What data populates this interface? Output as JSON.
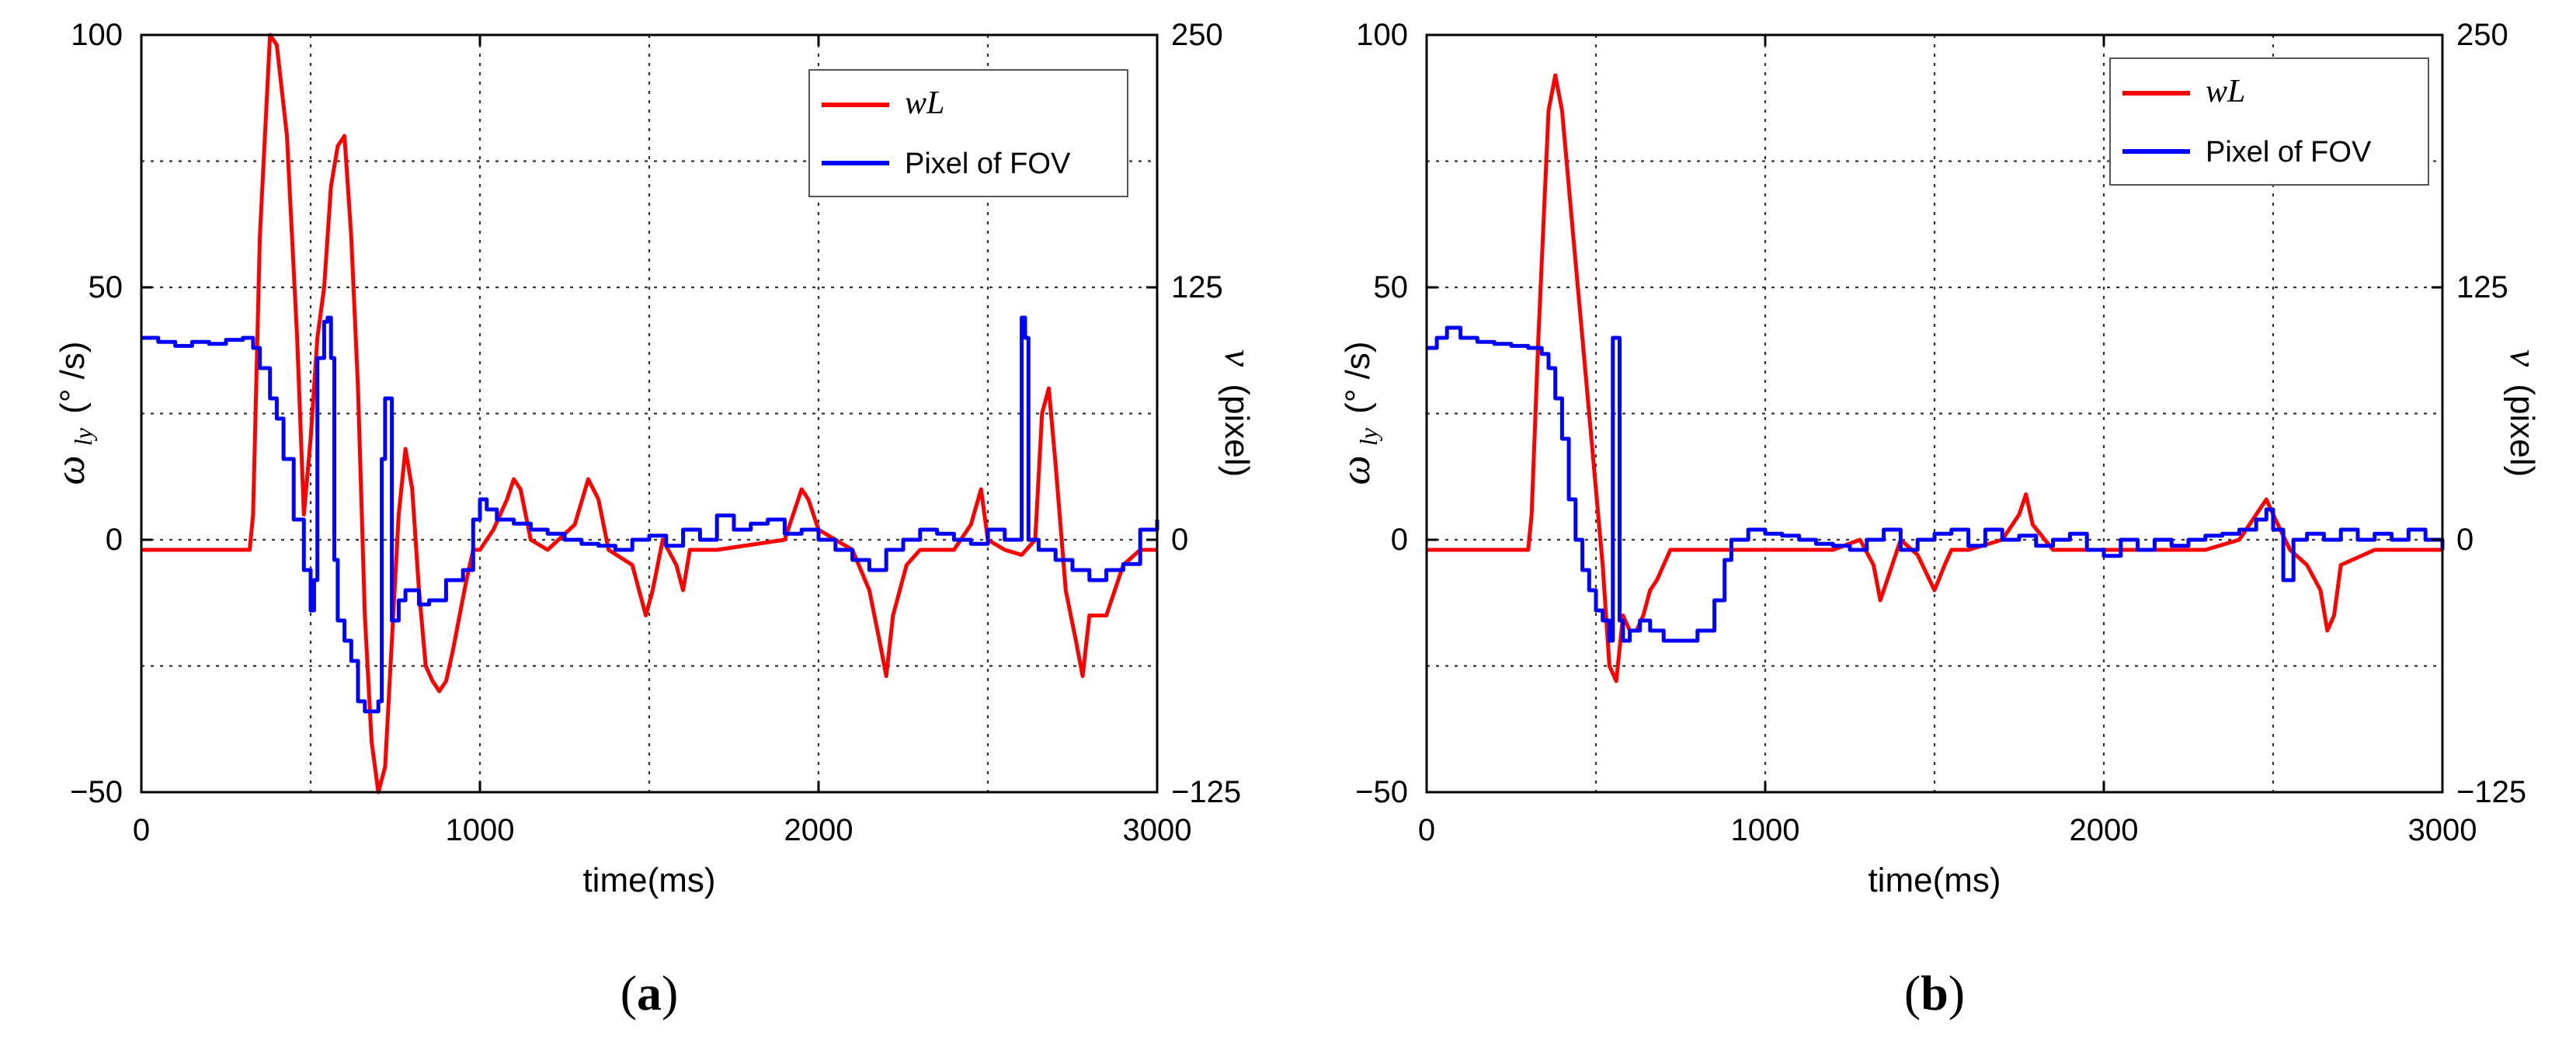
{
  "chart_data": [
    {
      "type": "line",
      "panel_label_parts": [
        "(",
        "a",
        ")"
      ],
      "xlabel": "time(ms)",
      "ylabel_left": {
        "symbol": "ω",
        "subscript": "ly",
        "units": "(° /s)"
      },
      "ylabel_right": {
        "symbol": "v",
        "units": "(pixel)"
      },
      "xlim": [
        0,
        3000
      ],
      "ylim_left": [
        -50,
        100
      ],
      "ylim_right": [
        -125,
        250
      ],
      "x_ticks": [
        "0",
        "1000",
        "2000",
        "3000"
      ],
      "y_left_ticks": [
        "−50",
        "0",
        "50",
        "100"
      ],
      "y_right_ticks": [
        "−125",
        "0",
        "125",
        "250"
      ],
      "grid": true,
      "legend_position": "top-right",
      "series": [
        {
          "name": "wL",
          "axis": "left",
          "color": "#ff0000",
          "x": [
            0,
            320,
            330,
            350,
            380,
            400,
            430,
            460,
            480,
            500,
            520,
            540,
            560,
            580,
            600,
            620,
            640,
            660,
            680,
            700,
            720,
            740,
            760,
            780,
            800,
            820,
            840,
            860,
            880,
            900,
            920,
            940,
            960,
            980,
            1000,
            1040,
            1080,
            1100,
            1120,
            1150,
            1200,
            1280,
            1320,
            1350,
            1380,
            1450,
            1490,
            1510,
            1540,
            1580,
            1600,
            1620,
            1700,
            1900,
            1950,
            1970,
            2000,
            2050,
            2100,
            2150,
            2180,
            2200,
            2220,
            2260,
            2300,
            2400,
            2450,
            2480,
            2500,
            2550,
            2600,
            2640,
            2660,
            2680,
            2700,
            2730,
            2760,
            2780,
            2800,
            2850,
            2900,
            2950,
            3000
          ],
          "y": [
            -2,
            -2,
            5,
            60,
            100,
            98,
            80,
            40,
            5,
            20,
            40,
            50,
            70,
            78,
            80,
            60,
            30,
            -15,
            -40,
            -50,
            -45,
            -20,
            5,
            18,
            10,
            -10,
            -25,
            -28,
            -30,
            -28,
            -22,
            -15,
            -8,
            -2,
            -2,
            2,
            8,
            12,
            10,
            0,
            -2,
            3,
            12,
            8,
            -2,
            -5,
            -15,
            -10,
            0,
            -5,
            -10,
            -2,
            -2,
            0,
            10,
            8,
            2,
            0,
            -2,
            -10,
            -20,
            -27,
            -15,
            -5,
            -2,
            -2,
            3,
            10,
            0,
            -2,
            -3,
            0,
            25,
            30,
            15,
            -10,
            -20,
            -27,
            -15,
            -15,
            -5,
            -2,
            -2
          ]
        },
        {
          "name": "Pixel of FOV",
          "axis": "right",
          "color": "#0000ff",
          "x": [
            0,
            50,
            100,
            150,
            200,
            250,
            300,
            330,
            350,
            380,
            400,
            420,
            450,
            480,
            500,
            510,
            520,
            530,
            540,
            550,
            560,
            570,
            580,
            600,
            620,
            640,
            660,
            680,
            700,
            710,
            720,
            730,
            740,
            750,
            760,
            780,
            800,
            820,
            850,
            880,
            900,
            950,
            980,
            1000,
            1020,
            1050,
            1100,
            1150,
            1200,
            1250,
            1300,
            1350,
            1400,
            1450,
            1500,
            1550,
            1600,
            1650,
            1700,
            1750,
            1800,
            1850,
            1900,
            1950,
            2000,
            2050,
            2100,
            2150,
            2200,
            2250,
            2300,
            2350,
            2400,
            2450,
            2500,
            2550,
            2580,
            2600,
            2610,
            2620,
            2650,
            2700,
            2750,
            2800,
            2850,
            2900,
            2950,
            3000
          ],
          "y": [
            100,
            98,
            96,
            98,
            97,
            99,
            100,
            95,
            85,
            70,
            60,
            40,
            10,
            -15,
            -35,
            -20,
            90,
            90,
            108,
            110,
            90,
            -10,
            -40,
            -50,
            -60,
            -80,
            -85,
            -85,
            -80,
            40,
            70,
            70,
            -40,
            -40,
            -30,
            -25,
            -25,
            -32,
            -30,
            -30,
            -20,
            -15,
            10,
            20,
            15,
            10,
            8,
            5,
            3,
            0,
            -2,
            -3,
            -5,
            0,
            2,
            -3,
            5,
            0,
            12,
            5,
            8,
            10,
            3,
            5,
            0,
            -5,
            -10,
            -15,
            -5,
            0,
            5,
            3,
            0,
            -2,
            5,
            0,
            0,
            110,
            100,
            0,
            -5,
            -10,
            -15,
            -20,
            -15,
            -12,
            5,
            10
          ]
        }
      ]
    },
    {
      "type": "line",
      "panel_label_parts": [
        "(",
        "b",
        ")"
      ],
      "xlabel": "time(ms)",
      "ylabel_left": {
        "symbol": "ω",
        "subscript": "ly",
        "units": "(° /s)"
      },
      "ylabel_right": {
        "symbol": "v",
        "units": "(pixel)"
      },
      "xlim": [
        0,
        3000
      ],
      "ylim_left": [
        -50,
        100
      ],
      "ylim_right": [
        -125,
        250
      ],
      "x_ticks": [
        "0",
        "1000",
        "2000",
        "3000"
      ],
      "y_left_ticks": [
        "−50",
        "0",
        "50",
        "100"
      ],
      "y_right_ticks": [
        "−125",
        "0",
        "125",
        "250"
      ],
      "grid": true,
      "legend_position": "top-right",
      "series": [
        {
          "name": "wL",
          "axis": "left",
          "color": "#ff0000",
          "x": [
            0,
            300,
            310,
            330,
            360,
            380,
            400,
            420,
            440,
            460,
            480,
            500,
            520,
            540,
            560,
            580,
            600,
            620,
            640,
            660,
            680,
            700,
            720,
            760,
            800,
            900,
            1000,
            1100,
            1200,
            1280,
            1320,
            1340,
            1360,
            1400,
            1450,
            1500,
            1530,
            1550,
            1600,
            1700,
            1750,
            1770,
            1790,
            1850,
            1900,
            2000,
            2100,
            2200,
            2300,
            2400,
            2450,
            2480,
            2500,
            2550,
            2600,
            2640,
            2660,
            2680,
            2700,
            2800,
            2900,
            3000
          ],
          "y": [
            -2,
            -2,
            5,
            40,
            85,
            92,
            85,
            70,
            55,
            40,
            25,
            10,
            -5,
            -25,
            -28,
            -15,
            -18,
            -18,
            -15,
            -10,
            -8,
            -5,
            -2,
            -2,
            -2,
            -2,
            -2,
            -2,
            -2,
            0,
            -5,
            -12,
            -8,
            0,
            -3,
            -10,
            -5,
            -2,
            -2,
            0,
            5,
            9,
            3,
            -2,
            -2,
            -2,
            -2,
            -2,
            -2,
            0,
            5,
            8,
            5,
            -2,
            -5,
            -10,
            -18,
            -15,
            -5,
            -2,
            -2,
            -2
          ]
        },
        {
          "name": "Pixel of FOV",
          "axis": "right",
          "color": "#0000ff",
          "x": [
            0,
            30,
            60,
            100,
            150,
            200,
            250,
            300,
            340,
            360,
            380,
            400,
            420,
            440,
            460,
            480,
            500,
            520,
            540,
            550,
            560,
            570,
            580,
            600,
            630,
            660,
            700,
            750,
            800,
            850,
            880,
            900,
            950,
            1000,
            1050,
            1100,
            1150,
            1200,
            1250,
            1300,
            1350,
            1400,
            1450,
            1500,
            1550,
            1600,
            1650,
            1700,
            1750,
            1800,
            1850,
            1900,
            1950,
            2000,
            2050,
            2100,
            2150,
            2200,
            2250,
            2300,
            2350,
            2400,
            2450,
            2480,
            2500,
            2530,
            2560,
            2600,
            2650,
            2700,
            2750,
            2800,
            2850,
            2900,
            2950,
            3000
          ],
          "y": [
            95,
            100,
            105,
            100,
            98,
            97,
            96,
            95,
            92,
            85,
            70,
            50,
            20,
            0,
            -15,
            -25,
            -35,
            -40,
            -50,
            100,
            100,
            -40,
            -50,
            -45,
            -40,
            -45,
            -50,
            -50,
            -45,
            -30,
            -10,
            0,
            5,
            3,
            2,
            0,
            -2,
            -3,
            -5,
            0,
            5,
            -5,
            0,
            3,
            5,
            -3,
            5,
            0,
            2,
            -3,
            0,
            3,
            -5,
            -8,
            0,
            -5,
            0,
            -3,
            0,
            2,
            3,
            5,
            10,
            15,
            5,
            -20,
            0,
            3,
            0,
            5,
            0,
            3,
            0,
            5,
            0,
            -5
          ]
        }
      ]
    }
  ]
}
